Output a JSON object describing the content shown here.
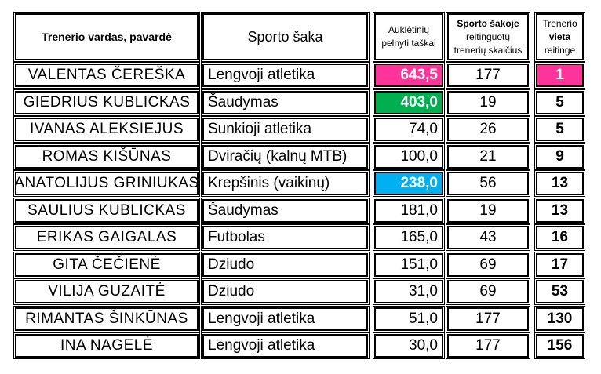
{
  "header": {
    "name": "Trenerio  vardas, pavardė",
    "sport": "Sporto  šaka",
    "points_line1": "Auklėtinių",
    "points_line2": "pelnyti taškai",
    "count_line1": "Sporto šakoje",
    "count_line2": "reitinguotų",
    "count_line3": "trenerių skaičius",
    "rank_line1": "Trenerio",
    "rank_line2": "vieta",
    "rank_line3": "reitinge"
  },
  "rows": [
    {
      "name": "VALENTAS  ČEREŠKA",
      "sport": "Lengvoji  atletika",
      "points": "643,5",
      "count": "177",
      "rank": "1",
      "points_color": "#ff3399",
      "rank_color": "#ff3399"
    },
    {
      "name": "GIEDRIUS  KUBLICKAS",
      "sport": "Šaudymas",
      "points": "403,0",
      "count": "19",
      "rank": "5",
      "points_color": "#00b050",
      "rank_color": ""
    },
    {
      "name": "IVANAS  ALEKSIEJUS",
      "sport": "Sunkioji atletika",
      "points": "74,0",
      "count": "26",
      "rank": "5",
      "points_color": "",
      "rank_color": ""
    },
    {
      "name": "ROMAS  KIŠŪNAS",
      "sport": "Dviračių (kalnų MTB)",
      "points": "100,0",
      "count": "21",
      "rank": "9",
      "points_color": "",
      "rank_color": ""
    },
    {
      "name": "ANATOLIJUS  GRINIUKAS",
      "sport": "Krepšinis (vaikinų)",
      "points": "238,0",
      "count": "56",
      "rank": "13",
      "points_color": "#00b0f0",
      "rank_color": ""
    },
    {
      "name": "SAULIUS  KUBLICKAS",
      "sport": "Šaudymas",
      "points": "181,0",
      "count": "19",
      "rank": "13",
      "points_color": "",
      "rank_color": ""
    },
    {
      "name": "ERIKAS  GAIGALAS",
      "sport": "Futbolas",
      "points": "165,0",
      "count": "43",
      "rank": "16",
      "points_color": "",
      "rank_color": ""
    },
    {
      "name": "GITA  ČEČIENĖ",
      "sport": "Dziudo",
      "points": "151,0",
      "count": "69",
      "rank": "17",
      "points_color": "",
      "rank_color": ""
    },
    {
      "name": "VILIJA  GUZAITĖ",
      "sport": "Dziudo",
      "points": "31,0",
      "count": "69",
      "rank": "53",
      "points_color": "",
      "rank_color": ""
    },
    {
      "name": "RIMANTAS  ŠINKŪNAS",
      "sport": "Lengvoji  atletika",
      "points": "51,0",
      "count": "177",
      "rank": "130",
      "points_color": "",
      "rank_color": ""
    },
    {
      "name": "INA  NAGELĖ",
      "sport": "Lengvoji  atletika",
      "points": "30,0",
      "count": "177",
      "rank": "156",
      "points_color": "",
      "rank_color": ""
    }
  ]
}
